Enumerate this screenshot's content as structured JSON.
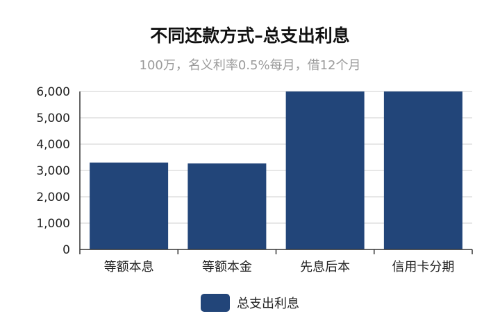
{
  "chart_data": {
    "type": "bar",
    "title": "不同还款方式–总支出利息",
    "subtitle": "100万，名义利率0.5%每月，借12个月",
    "categories": [
      "等额本息",
      "等额本金",
      "先息后本",
      "信用卡分期"
    ],
    "series": [
      {
        "name": "总支出利息",
        "values": [
          3300,
          3270,
          6000,
          6000
        ]
      }
    ],
    "ylim": [
      0,
      6000
    ],
    "yticks": [
      "0",
      "1,000",
      "2,000",
      "3,000",
      "4,000",
      "5,000",
      "6,000"
    ],
    "grid": true,
    "legend": "bottom",
    "bar_color": "#224579"
  }
}
